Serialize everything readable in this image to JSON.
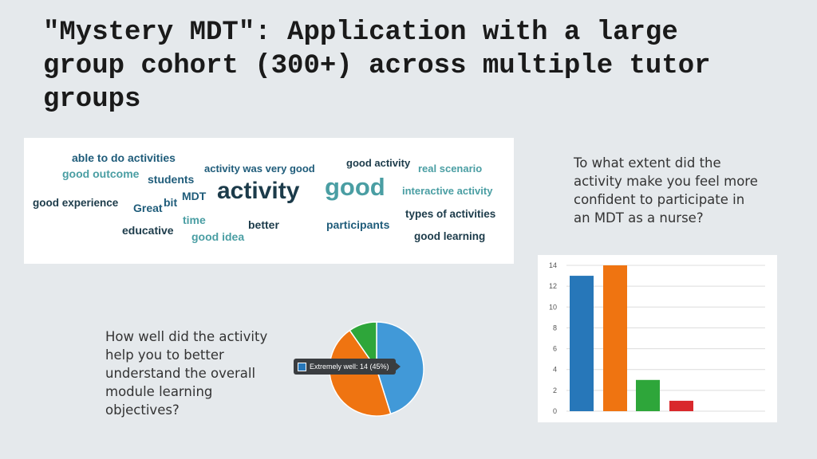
{
  "slide": {
    "title": "\"Mystery MDT\": Application with a large group cohort (300+) across multiple tutor groups"
  },
  "wordcloud": {
    "words": [
      {
        "text": "able to do activities",
        "color": "#1f5c7a"
      },
      {
        "text": "good outcome",
        "color": "#4a9ea3"
      },
      {
        "text": "students",
        "color": "#1f5c7a"
      },
      {
        "text": "activity was very good",
        "color": "#1f5c7a"
      },
      {
        "text": "good activity",
        "color": "#1c3b4a"
      },
      {
        "text": "real scenario",
        "color": "#4a9ea3"
      },
      {
        "text": "activity",
        "color": "#1c3b4a"
      },
      {
        "text": "good",
        "color": "#4a9ea3"
      },
      {
        "text": "interactive activity",
        "color": "#4a9ea3"
      },
      {
        "text": "good experience",
        "color": "#1c3b4a"
      },
      {
        "text": "Great",
        "color": "#1f5c7a"
      },
      {
        "text": "bit",
        "color": "#1f5c7a"
      },
      {
        "text": "MDT",
        "color": "#1f5c7a"
      },
      {
        "text": "time",
        "color": "#4a9ea3"
      },
      {
        "text": "better",
        "color": "#1c3b4a"
      },
      {
        "text": "participants",
        "color": "#1f5c7a"
      },
      {
        "text": "types of activities",
        "color": "#1c3b4a"
      },
      {
        "text": "educative",
        "color": "#1c3b4a"
      },
      {
        "text": "good idea",
        "color": "#4a9ea3"
      },
      {
        "text": "good learning",
        "color": "#1c3b4a"
      }
    ]
  },
  "questions": {
    "q1": "To what extent did the activity make you feel more confident to participate in an MDT as a nurse?",
    "q2": "How well did the activity help you to better understand the overall module learning objectives?"
  },
  "pie_tooltip": "Extremely well: 14 (45%)",
  "chart_data": [
    {
      "type": "bar",
      "categories": [
        "",
        "",
        "",
        ""
      ],
      "values": [
        13,
        14,
        3,
        1
      ],
      "colors": [
        "#2777b9",
        "#ef7411",
        "#2ea63a",
        "#d9282c"
      ],
      "ylim": [
        0,
        14
      ],
      "yticks": [
        "0",
        "2",
        "4",
        "6",
        "8",
        "10",
        "12",
        "14"
      ],
      "grid": true,
      "title": "",
      "xlabel": "",
      "ylabel": ""
    },
    {
      "type": "pie",
      "labels": [
        "Extremely well",
        "",
        ""
      ],
      "values": [
        14,
        14,
        3
      ],
      "colors": [
        "#4199d8",
        "#ef7411",
        "#2ea63a"
      ]
    }
  ]
}
